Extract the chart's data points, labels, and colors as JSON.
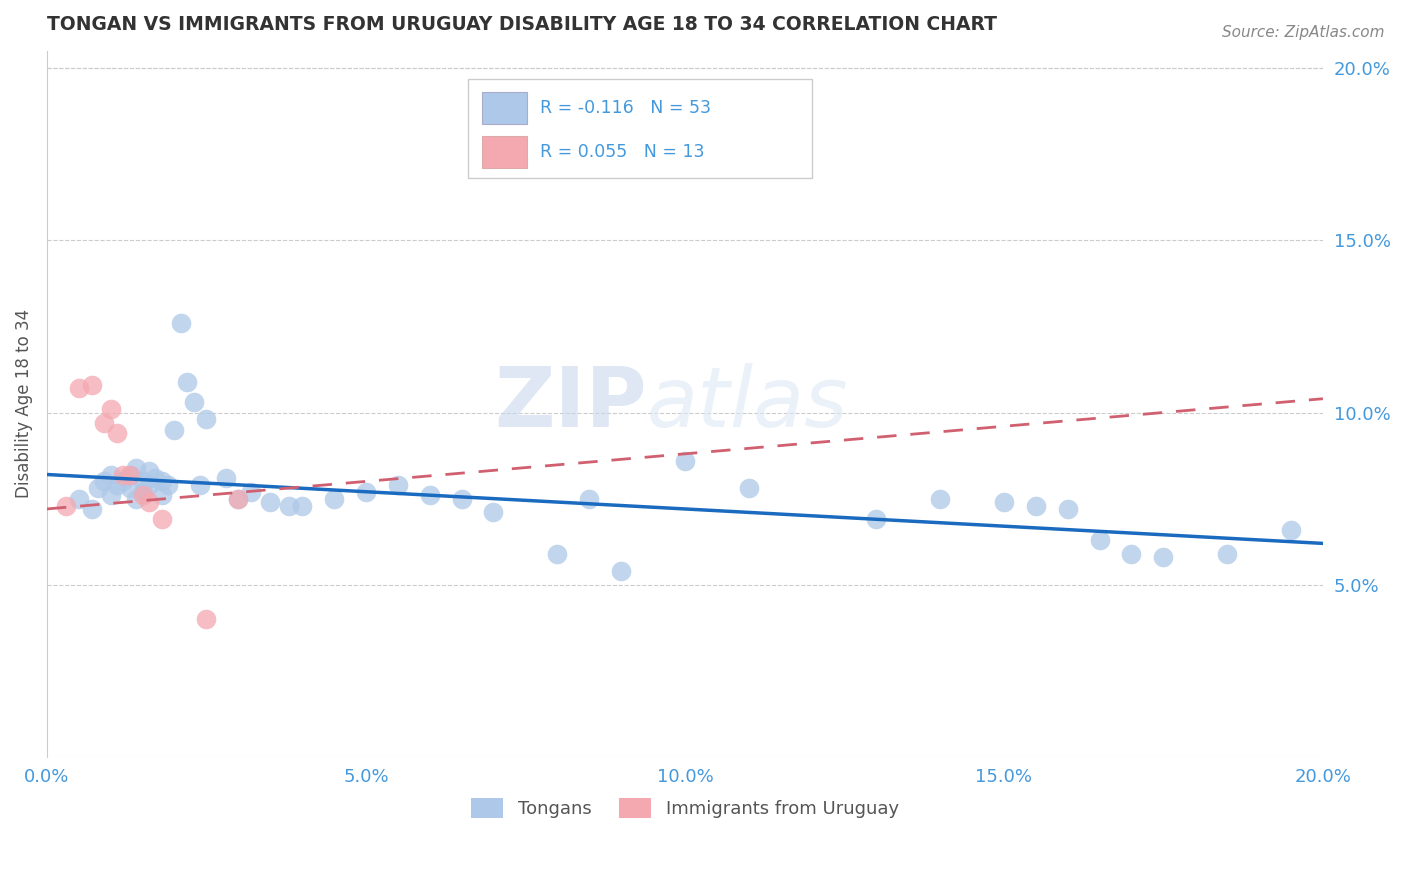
{
  "title": "TONGAN VS IMMIGRANTS FROM URUGUAY DISABILITY AGE 18 TO 34 CORRELATION CHART",
  "source": "Source: ZipAtlas.com",
  "ylabel": "Disability Age 18 to 34",
  "xlim": [
    0.0,
    0.2
  ],
  "ylim": [
    0.0,
    0.2
  ],
  "yticks": [
    0.05,
    0.1,
    0.15,
    0.2
  ],
  "xticks": [
    0.0,
    0.05,
    0.1,
    0.15,
    0.2
  ],
  "ytick_labels": [
    "5.0%",
    "10.0%",
    "15.0%",
    "20.0%"
  ],
  "xtick_labels": [
    "0.0%",
    "5.0%",
    "10.0%",
    "15.0%",
    "20.0%"
  ],
  "series1_label": "Tongans",
  "series2_label": "Immigrants from Uruguay",
  "series1_R": -0.116,
  "series1_N": 53,
  "series2_R": 0.055,
  "series2_N": 13,
  "series1_color": "#adc8e8",
  "series2_color": "#f4a8b0",
  "series1_line_color": "#1a6bbf",
  "series2_line_color": "#d06070",
  "axis_color": "#4499dd",
  "watermark_zip": "ZIP",
  "watermark_atlas": "atlas",
  "tongans_x": [
    0.005,
    0.007,
    0.008,
    0.009,
    0.01,
    0.01,
    0.011,
    0.012,
    0.013,
    0.013,
    0.014,
    0.014,
    0.015,
    0.015,
    0.016,
    0.016,
    0.017,
    0.018,
    0.018,
    0.019,
    0.02,
    0.021,
    0.022,
    0.023,
    0.024,
    0.025,
    0.028,
    0.03,
    0.032,
    0.035,
    0.038,
    0.04,
    0.045,
    0.05,
    0.055,
    0.06,
    0.065,
    0.07,
    0.08,
    0.085,
    0.09,
    0.1,
    0.11,
    0.13,
    0.14,
    0.15,
    0.155,
    0.16,
    0.165,
    0.17,
    0.175,
    0.185,
    0.195
  ],
  "tongans_y": [
    0.075,
    0.072,
    0.078,
    0.08,
    0.082,
    0.076,
    0.079,
    0.08,
    0.078,
    0.082,
    0.075,
    0.084,
    0.077,
    0.08,
    0.079,
    0.083,
    0.081,
    0.076,
    0.08,
    0.079,
    0.095,
    0.126,
    0.109,
    0.103,
    0.079,
    0.098,
    0.081,
    0.075,
    0.077,
    0.074,
    0.073,
    0.073,
    0.075,
    0.077,
    0.079,
    0.076,
    0.075,
    0.071,
    0.059,
    0.075,
    0.054,
    0.086,
    0.078,
    0.069,
    0.075,
    0.074,
    0.073,
    0.072,
    0.063,
    0.059,
    0.058,
    0.059,
    0.066
  ],
  "uruguay_x": [
    0.003,
    0.005,
    0.007,
    0.009,
    0.01,
    0.011,
    0.012,
    0.013,
    0.015,
    0.016,
    0.018,
    0.025,
    0.03
  ],
  "uruguay_y": [
    0.073,
    0.107,
    0.108,
    0.097,
    0.101,
    0.094,
    0.082,
    0.082,
    0.076,
    0.074,
    0.069,
    0.04,
    0.075
  ],
  "line1_x": [
    0.0,
    0.2
  ],
  "line1_y": [
    0.082,
    0.062
  ],
  "line2_x": [
    0.0,
    0.2
  ],
  "line2_y": [
    0.072,
    0.104
  ]
}
